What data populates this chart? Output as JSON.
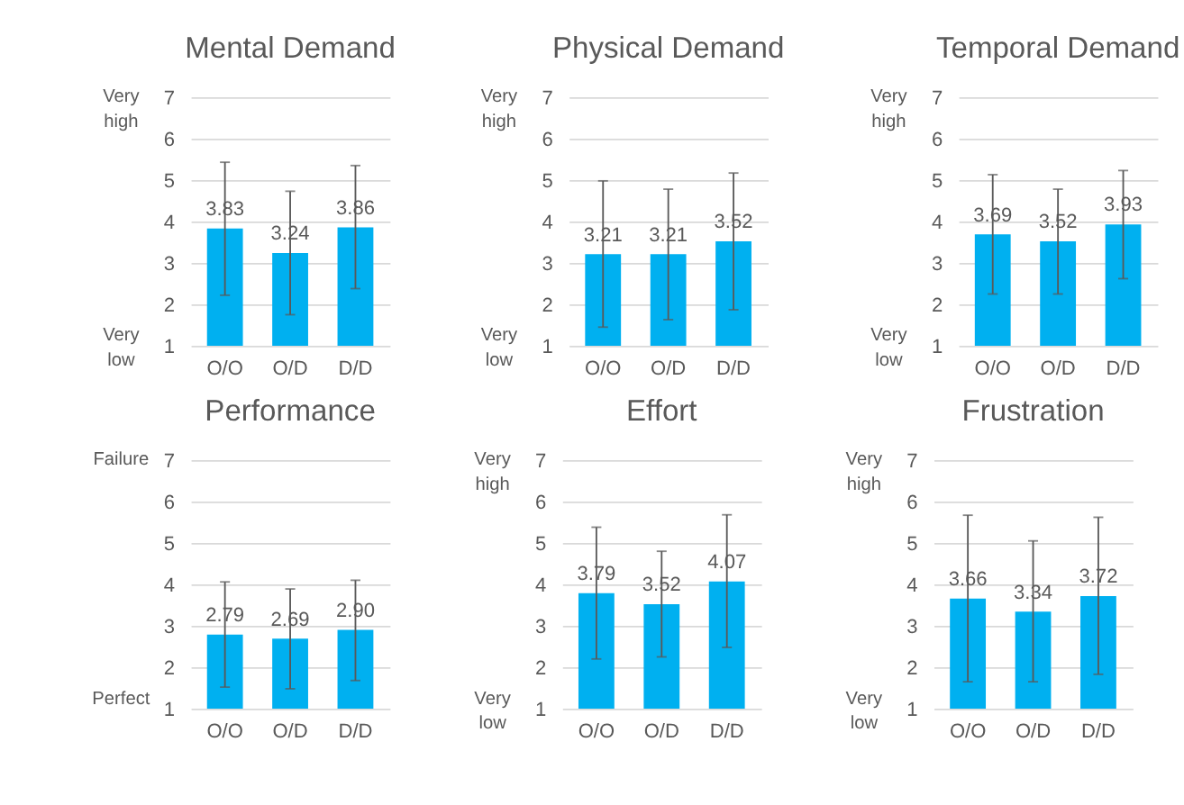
{
  "chart_data": [
    {
      "type": "bar",
      "title": "Mental Demand",
      "categories": [
        "O/O",
        "O/D",
        "D/D"
      ],
      "values": [
        3.83,
        3.24,
        3.86
      ],
      "color": "#00b0f0",
      "errors": [
        [
          2.22,
          5.43
        ],
        [
          1.75,
          4.73
        ],
        [
          2.38,
          5.35
        ]
      ],
      "ylim": [
        1,
        7
      ],
      "yticks": [
        1,
        2,
        3,
        4,
        5,
        6,
        7
      ],
      "grid": "y",
      "value_labels": [
        "3.83",
        "3.24",
        "3.86"
      ],
      "annotations": [
        "Very high",
        "Very low"
      ]
    },
    {
      "type": "bar",
      "title": "Physical Demand",
      "categories": [
        "O/O",
        "O/D",
        "D/D"
      ],
      "values": [
        3.21,
        3.21,
        3.52
      ],
      "color": "#00b0f0",
      "errors": [
        [
          1.45,
          4.98
        ],
        [
          1.63,
          4.78
        ],
        [
          1.87,
          5.17
        ]
      ],
      "ylim": [
        1,
        7
      ],
      "yticks": [
        1,
        2,
        3,
        4,
        5,
        6,
        7
      ],
      "grid": "y",
      "value_labels": [
        "3.21",
        "3.21",
        "3.52"
      ],
      "annotations": [
        "Very high",
        "Very low"
      ]
    },
    {
      "type": "bar",
      "title": "Temporal Demand",
      "categories": [
        "O/O",
        "O/D",
        "D/D"
      ],
      "values": [
        3.69,
        3.52,
        3.93
      ],
      "color": "#00b0f0",
      "errors": [
        [
          2.25,
          5.13
        ],
        [
          2.25,
          4.78
        ],
        [
          2.62,
          5.23
        ]
      ],
      "ylim": [
        1,
        7
      ],
      "yticks": [
        1,
        2,
        3,
        4,
        5,
        6,
        7
      ],
      "grid": "y",
      "value_labels": [
        "3.69",
        "3.52",
        "3.93"
      ],
      "annotations": [
        "Very high",
        "Very low"
      ]
    },
    {
      "type": "bar",
      "title": "Performance",
      "categories": [
        "O/O",
        "O/D",
        "D/D"
      ],
      "values": [
        2.79,
        2.69,
        2.9
      ],
      "color": "#00b0f0",
      "errors": [
        [
          1.52,
          4.06
        ],
        [
          1.48,
          3.89
        ],
        [
          1.68,
          4.1
        ]
      ],
      "ylim": [
        1,
        7
      ],
      "yticks": [
        1,
        2,
        3,
        4,
        5,
        6,
        7
      ],
      "grid": "y",
      "value_labels": [
        "2.79",
        "2.69",
        "2.90"
      ],
      "annotations": [
        "Failure",
        "Perfect"
      ]
    },
    {
      "type": "bar",
      "title": "Effort",
      "categories": [
        "O/O",
        "O/D",
        "D/D"
      ],
      "values": [
        3.79,
        3.52,
        4.07
      ],
      "color": "#00b0f0",
      "errors": [
        [
          2.2,
          5.38
        ],
        [
          2.25,
          4.8
        ],
        [
          2.48,
          5.68
        ]
      ],
      "ylim": [
        1,
        7
      ],
      "yticks": [
        1,
        2,
        3,
        4,
        5,
        6,
        7
      ],
      "grid": "y",
      "value_labels": [
        "3.79",
        "3.52",
        "4.07"
      ],
      "annotations": [
        "Very high",
        "Very low"
      ]
    },
    {
      "type": "bar",
      "title": "Frustration",
      "categories": [
        "O/O",
        "O/D",
        "D/D"
      ],
      "values": [
        3.66,
        3.34,
        3.72
      ],
      "color": "#00b0f0",
      "errors": [
        [
          1.65,
          5.67
        ],
        [
          1.65,
          5.05
        ],
        [
          1.83,
          5.62
        ]
      ],
      "ylim": [
        1,
        7
      ],
      "yticks": [
        1,
        2,
        3,
        4,
        5,
        6,
        7
      ],
      "grid": "y",
      "value_labels": [
        "3.66",
        "3.34",
        "3.72"
      ],
      "annotations": [
        "Very high",
        "Very low"
      ]
    }
  ]
}
